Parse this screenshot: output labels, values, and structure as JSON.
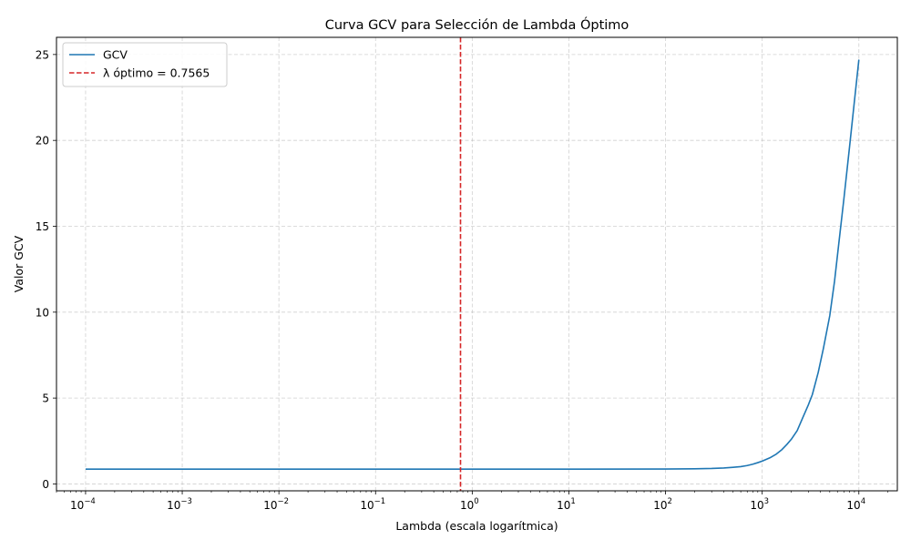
{
  "chart_data": {
    "type": "line",
    "title": "Curva GCV para Selección de Lambda Óptimo",
    "xlabel": "Lambda (escala logarítmica)",
    "ylabel": "Valor GCV",
    "x_scale": "log",
    "xlim": [
      5e-05,
      25000
    ],
    "ylim": [
      -0.4,
      26
    ],
    "grid": true,
    "legend_position": "top-left",
    "x_ticks": [
      {
        "base": "10",
        "exp": "−4"
      },
      {
        "base": "10",
        "exp": "−3"
      },
      {
        "base": "10",
        "exp": "−2"
      },
      {
        "base": "10",
        "exp": "−1"
      },
      {
        "base": "10",
        "exp": "0"
      },
      {
        "base": "10",
        "exp": "1"
      },
      {
        "base": "10",
        "exp": "2"
      },
      {
        "base": "10",
        "exp": "3"
      },
      {
        "base": "10",
        "exp": "4"
      }
    ],
    "y_ticks": [
      "0",
      "5",
      "10",
      "15",
      "20",
      "25"
    ],
    "series": [
      {
        "name": "GCV",
        "color": "#1f77b4",
        "style": "solid",
        "points": [
          [
            0.0001,
            0.86
          ],
          [
            0.001,
            0.86
          ],
          [
            0.01,
            0.86
          ],
          [
            0.1,
            0.86
          ],
          [
            1,
            0.86
          ],
          [
            10,
            0.86
          ],
          [
            100,
            0.87
          ],
          [
            200,
            0.88
          ],
          [
            300,
            0.9
          ],
          [
            400,
            0.93
          ],
          [
            500,
            0.97
          ],
          [
            600,
            1.01
          ],
          [
            700,
            1.07
          ],
          [
            800,
            1.15
          ],
          [
            900,
            1.24
          ],
          [
            1000,
            1.33
          ],
          [
            1200,
            1.52
          ],
          [
            1400,
            1.74
          ],
          [
            1600,
            2.0
          ],
          [
            1800,
            2.3
          ],
          [
            2000,
            2.6
          ],
          [
            2300,
            3.1
          ],
          [
            2600,
            3.8
          ],
          [
            3000,
            4.6
          ],
          [
            3300,
            5.2
          ],
          [
            3800,
            6.5
          ],
          [
            4300,
            7.9
          ],
          [
            5000,
            9.8
          ],
          [
            5600,
            11.8
          ],
          [
            6200,
            14.0
          ],
          [
            7000,
            16.6
          ],
          [
            8000,
            19.6
          ],
          [
            9000,
            22.3
          ],
          [
            10000,
            24.7
          ]
        ]
      }
    ],
    "reference_lines": [
      {
        "name": "λ óptimo = 0.7565",
        "x": 0.7565,
        "color": "#d62728",
        "style": "dashed"
      }
    ]
  }
}
